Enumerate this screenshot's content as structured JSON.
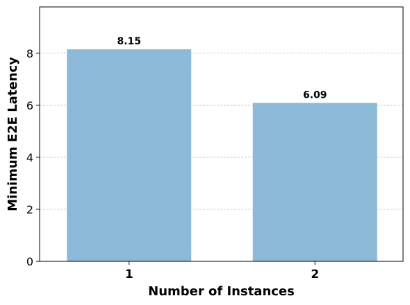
{
  "chart_data": {
    "type": "bar",
    "categories": [
      "1",
      "2"
    ],
    "values": [
      8.15,
      6.09
    ],
    "data_labels": [
      "8.15",
      "6.09"
    ],
    "xlabel": "Number of Instances",
    "ylabel": "Minimum E2E Latency",
    "ylim": [
      0,
      9.78
    ],
    "yticks": [
      0,
      2,
      4,
      6,
      8
    ],
    "ytick_labels": [
      "0",
      "2",
      "4",
      "6",
      "8"
    ],
    "grid": "horizontal dashed",
    "bar_color": "#8db9d9",
    "grid_color": "#b0b0b0"
  }
}
